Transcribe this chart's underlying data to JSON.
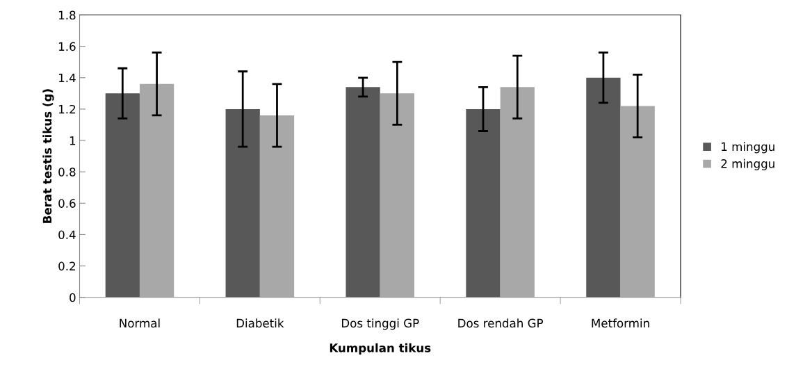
{
  "chart_data": {
    "type": "bar",
    "xlabel": "Kumpulan tikus",
    "ylabel": "Berat testis tikus (g)",
    "categories": [
      "Normal",
      "Diabetik",
      "Dos tinggi GP",
      "Dos rendah GP",
      "Metformin"
    ],
    "series": [
      {
        "name": "1 minggu",
        "color": "#585858",
        "values": [
          1.3,
          1.2,
          1.34,
          1.2,
          1.4
        ],
        "errors": [
          0.16,
          0.24,
          0.06,
          0.14,
          0.16
        ]
      },
      {
        "name": "2 minggu",
        "color": "#a8a8a8",
        "values": [
          1.36,
          1.16,
          1.3,
          1.34,
          1.22
        ],
        "errors": [
          0.2,
          0.2,
          0.2,
          0.2,
          0.2
        ]
      }
    ],
    "ylim": [
      0,
      1.8
    ],
    "yticks": [
      0,
      0.2,
      0.4,
      0.6,
      0.8,
      1,
      1.2,
      1.4,
      1.6,
      1.8
    ],
    "grid": false,
    "legend": "right"
  }
}
